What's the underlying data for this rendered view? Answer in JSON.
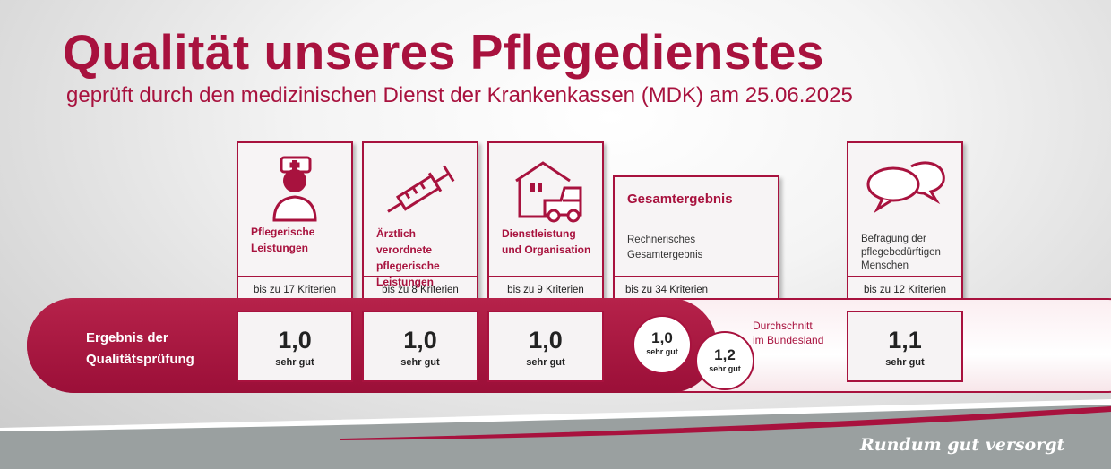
{
  "header": {
    "title": "Qualität unseres Pflegedienstes",
    "subtitle": "geprüft durch den medizinischen Dienst der Krankenkassen (MDK) am 25.06.2025"
  },
  "colors": {
    "brand": "#a8123e",
    "band_red": "#9b0f38",
    "footer_gray": "#9aa0a0"
  },
  "cards": [
    {
      "icon": "nurse-icon",
      "label_lines": [
        "Pflegerische",
        "Leistungen"
      ],
      "criteria": "bis zu 17 Kriterien"
    },
    {
      "icon": "syringe-icon",
      "label_lines": [
        "Ärztlich verordnete",
        "pflegerische",
        "Leistungen"
      ],
      "criteria": "bis zu 8 Kriterien"
    },
    {
      "icon": "house-car-icon",
      "label_lines": [
        "Dienstleistung",
        "und Organisation"
      ],
      "criteria": "bis zu 9 Kriterien"
    },
    {
      "heading": "Gesamtergebnis",
      "label_lines": [
        "Rechnerisches",
        "Gesamtergebnis"
      ],
      "criteria": "bis zu 34 Kriterien"
    },
    {
      "icon": "speech-bubbles-icon",
      "label_lines": [
        "Befragung der",
        "pflegebedürftigen",
        "Menschen"
      ],
      "criteria": "bis zu 12 Kriterien"
    }
  ],
  "band": {
    "label_lines": [
      "Ergebnis der",
      "Qualitätsprüfung"
    ]
  },
  "results": [
    {
      "grade": "1,0",
      "text": "sehr gut"
    },
    {
      "grade": "1,0",
      "text": "sehr gut"
    },
    {
      "grade": "1,0",
      "text": "sehr gut"
    },
    {
      "grade": "1,1",
      "text": "sehr gut"
    }
  ],
  "overall": {
    "grade": "1,0",
    "text": "sehr gut"
  },
  "average": {
    "grade": "1,2",
    "text": "sehr gut",
    "label_lines": [
      "Durchschnitt",
      "im Bundesland"
    ]
  },
  "footer": {
    "slogan": "Rundum gut versorgt"
  }
}
